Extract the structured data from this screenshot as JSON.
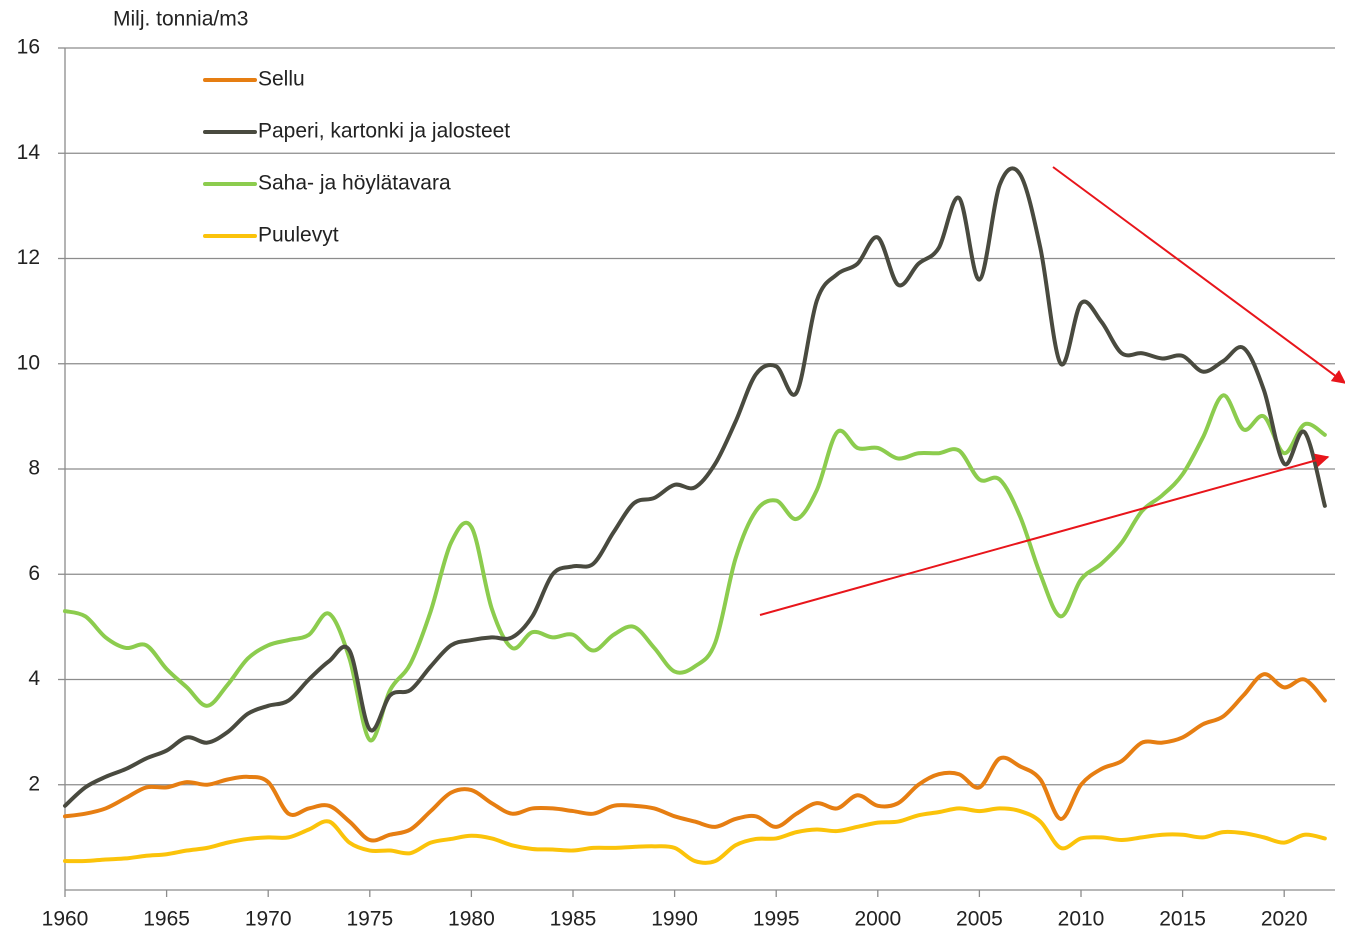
{
  "chart_data": {
    "type": "line",
    "y_axis_label": "Milj. tonnia/m3",
    "x": [
      1960,
      1961,
      1962,
      1963,
      1964,
      1965,
      1966,
      1967,
      1968,
      1969,
      1970,
      1971,
      1972,
      1973,
      1974,
      1975,
      1976,
      1977,
      1978,
      1979,
      1980,
      1981,
      1982,
      1983,
      1984,
      1985,
      1986,
      1987,
      1988,
      1989,
      1990,
      1991,
      1992,
      1993,
      1994,
      1995,
      1996,
      1997,
      1998,
      1999,
      2000,
      2001,
      2002,
      2003,
      2004,
      2005,
      2006,
      2007,
      2008,
      2009,
      2010,
      2011,
      2012,
      2013,
      2014,
      2015,
      2016,
      2017,
      2018,
      2019,
      2020,
      2021,
      2022
    ],
    "series": [
      {
        "name": "Sellu",
        "color": "#e67e12",
        "values": [
          1.4,
          1.45,
          1.55,
          1.75,
          1.95,
          1.95,
          2.05,
          2.0,
          2.1,
          2.15,
          2.05,
          1.45,
          1.55,
          1.6,
          1.3,
          0.95,
          1.05,
          1.15,
          1.5,
          1.85,
          1.9,
          1.65,
          1.45,
          1.55,
          1.55,
          1.5,
          1.45,
          1.6,
          1.6,
          1.55,
          1.4,
          1.3,
          1.2,
          1.35,
          1.4,
          1.2,
          1.45,
          1.65,
          1.55,
          1.8,
          1.6,
          1.65,
          2.0,
          2.2,
          2.2,
          1.95,
          2.5,
          2.35,
          2.1,
          1.35,
          2.0,
          2.3,
          2.45,
          2.8,
          2.8,
          2.9,
          3.15,
          3.3,
          3.7,
          4.1,
          3.85,
          4.0,
          3.6
        ]
      },
      {
        "name": "Paperi, kartonki ja jalosteet",
        "color": "#494a3f",
        "values": [
          1.6,
          1.95,
          2.15,
          2.3,
          2.5,
          2.65,
          2.9,
          2.8,
          3.0,
          3.35,
          3.5,
          3.6,
          4.0,
          4.35,
          4.55,
          3.05,
          3.7,
          3.8,
          4.25,
          4.65,
          4.75,
          4.8,
          4.8,
          5.2,
          6.0,
          6.15,
          6.2,
          6.8,
          7.35,
          7.45,
          7.7,
          7.65,
          8.1,
          8.9,
          9.8,
          9.95,
          9.45,
          11.2,
          11.7,
          11.9,
          12.4,
          11.5,
          11.9,
          12.2,
          13.15,
          11.6,
          13.4,
          13.6,
          12.2,
          10.0,
          11.15,
          10.8,
          10.2,
          10.2,
          10.1,
          10.15,
          9.85,
          10.05,
          10.3,
          9.5,
          8.1,
          8.7,
          7.3
        ]
      },
      {
        "name": "Saha- ja höylätavara",
        "color": "#8ccc4e",
        "values": [
          5.3,
          5.2,
          4.8,
          4.6,
          4.65,
          4.2,
          3.85,
          3.5,
          3.9,
          4.4,
          4.65,
          4.75,
          4.85,
          5.25,
          4.4,
          2.85,
          3.8,
          4.3,
          5.3,
          6.6,
          6.9,
          5.35,
          4.6,
          4.9,
          4.8,
          4.85,
          4.55,
          4.85,
          5.0,
          4.6,
          4.15,
          4.25,
          4.7,
          6.3,
          7.2,
          7.4,
          7.05,
          7.6,
          8.7,
          8.4,
          8.4,
          8.2,
          8.3,
          8.3,
          8.35,
          7.8,
          7.8,
          7.1,
          6.0,
          5.2,
          5.9,
          6.2,
          6.6,
          7.2,
          7.5,
          7.9,
          8.6,
          9.4,
          8.75,
          9.0,
          8.3,
          8.85,
          8.65
        ]
      },
      {
        "name": "Puulevyt",
        "color": "#fbc30a",
        "values": [
          0.55,
          0.55,
          0.58,
          0.6,
          0.65,
          0.68,
          0.75,
          0.8,
          0.9,
          0.97,
          1.0,
          1.0,
          1.15,
          1.3,
          0.9,
          0.75,
          0.75,
          0.7,
          0.9,
          0.97,
          1.03,
          0.98,
          0.85,
          0.78,
          0.77,
          0.75,
          0.8,
          0.8,
          0.82,
          0.83,
          0.8,
          0.55,
          0.55,
          0.85,
          0.97,
          0.98,
          1.1,
          1.15,
          1.12,
          1.2,
          1.28,
          1.3,
          1.42,
          1.48,
          1.55,
          1.5,
          1.55,
          1.5,
          1.3,
          0.8,
          0.98,
          1.0,
          0.95,
          1.0,
          1.05,
          1.05,
          1.0,
          1.1,
          1.08,
          1.0,
          0.9,
          1.05,
          0.98
        ]
      }
    ],
    "xlim": [
      1960,
      2022.5
    ],
    "xticks": [
      1960,
      1965,
      1970,
      1975,
      1980,
      1985,
      1990,
      1995,
      2000,
      2005,
      2010,
      2015,
      2020
    ],
    "ylim": [
      0,
      16
    ],
    "yticks": [
      2,
      4,
      6,
      8,
      10,
      12,
      14,
      16
    ],
    "grid": true,
    "legend": "upper left"
  }
}
